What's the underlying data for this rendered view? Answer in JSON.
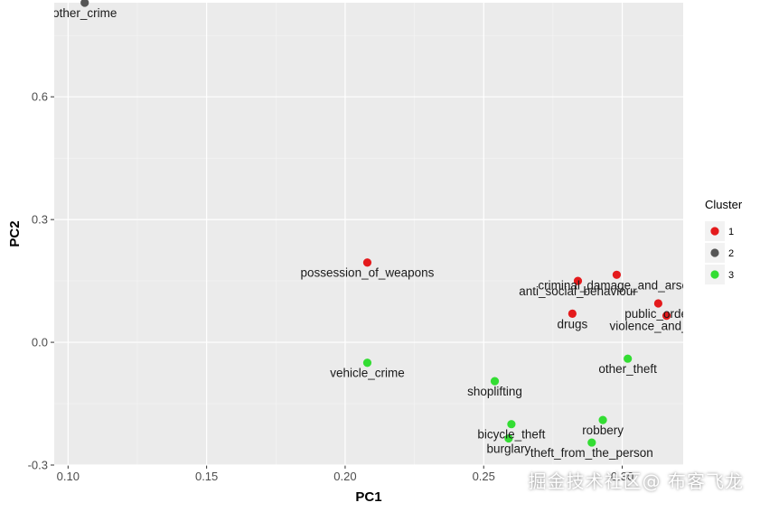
{
  "chart_data": {
    "type": "scatter",
    "title": "",
    "xlabel": "PC1",
    "ylabel": "PC2",
    "xlim": [
      0.095,
      0.322
    ],
    "ylim": [
      -0.3,
      0.83
    ],
    "x_ticks": [
      0.1,
      0.15,
      0.2,
      0.25,
      0.3
    ],
    "x_tick_labels": [
      "0.10",
      "0.15",
      "0.20",
      "0.25",
      "0.30"
    ],
    "y_ticks": [
      -0.3,
      0.0,
      0.3,
      0.6
    ],
    "y_tick_labels": [
      "-0.3",
      "0.0",
      "0.3",
      "0.6"
    ],
    "grid": true,
    "legend": {
      "title": "Cluster",
      "position": "right",
      "entries": [
        {
          "label": "1",
          "color": "#e41a1c"
        },
        {
          "label": "2",
          "color": "#555555"
        },
        {
          "label": "3",
          "color": "#33dd33"
        }
      ]
    },
    "points": [
      {
        "label": "other_crime",
        "x": 0.106,
        "y": 0.83,
        "cluster": "2"
      },
      {
        "label": "possession_of_weapons",
        "x": 0.208,
        "y": 0.195,
        "cluster": "1"
      },
      {
        "label": "anti_social_behaviour",
        "x": 0.284,
        "y": 0.15,
        "cluster": "1"
      },
      {
        "label": "criminal_damage_and_arson",
        "x": 0.298,
        "y": 0.165,
        "cluster": "1"
      },
      {
        "label": "public_order",
        "x": 0.313,
        "y": 0.095,
        "cluster": "1"
      },
      {
        "label": "drugs",
        "x": 0.282,
        "y": 0.07,
        "cluster": "1"
      },
      {
        "label": "violence_and_sexual",
        "x": 0.316,
        "y": 0.065,
        "cluster": "1"
      },
      {
        "label": "other_theft",
        "x": 0.302,
        "y": -0.04,
        "cluster": "3"
      },
      {
        "label": "vehicle_crime",
        "x": 0.208,
        "y": -0.05,
        "cluster": "3"
      },
      {
        "label": "shoplifting",
        "x": 0.254,
        "y": -0.095,
        "cluster": "3"
      },
      {
        "label": "robbery",
        "x": 0.293,
        "y": -0.19,
        "cluster": "3"
      },
      {
        "label": "bicycle_theft",
        "x": 0.26,
        "y": -0.2,
        "cluster": "3"
      },
      {
        "label": "burglary",
        "x": 0.259,
        "y": -0.235,
        "cluster": "3"
      },
      {
        "label": "theft_from_the_person",
        "x": 0.289,
        "y": -0.245,
        "cluster": "3"
      }
    ]
  },
  "colors": {
    "panel_bg": "#ebebeb",
    "grid_major": "#ffffff",
    "grid_minor": "#f5f5f5",
    "label_text": "#1a1a1a",
    "axis_text": "#4d4d4d"
  },
  "watermark": "掘金技术社区@ 布客飞龙"
}
